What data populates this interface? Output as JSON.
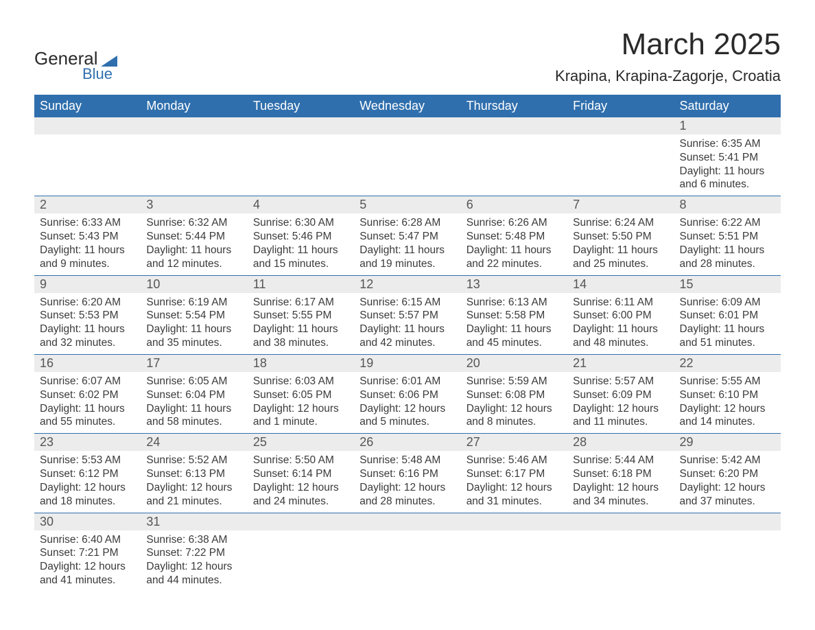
{
  "logo": {
    "word1": "General",
    "word2": "Blue"
  },
  "title": "March 2025",
  "location": "Krapina, Krapina-Zagorje, Croatia",
  "colors": {
    "header_bg": "#2f6fad",
    "header_text": "#ffffff",
    "daynum_bg": "#ececec",
    "row_border": "#2f6fad",
    "text": "#3a3a3a",
    "page_bg": "#ffffff"
  },
  "typography": {
    "title_fontsize": 44,
    "location_fontsize": 22,
    "dayheader_fontsize": 18,
    "body_fontsize": 15.5
  },
  "weekdays": [
    "Sunday",
    "Monday",
    "Tuesday",
    "Wednesday",
    "Thursday",
    "Friday",
    "Saturday"
  ],
  "weeks": [
    [
      null,
      null,
      null,
      null,
      null,
      null,
      {
        "n": "1",
        "sr": "Sunrise: 6:35 AM",
        "ss": "Sunset: 5:41 PM",
        "dl1": "Daylight: 11 hours",
        "dl2": "and 6 minutes."
      }
    ],
    [
      {
        "n": "2",
        "sr": "Sunrise: 6:33 AM",
        "ss": "Sunset: 5:43 PM",
        "dl1": "Daylight: 11 hours",
        "dl2": "and 9 minutes."
      },
      {
        "n": "3",
        "sr": "Sunrise: 6:32 AM",
        "ss": "Sunset: 5:44 PM",
        "dl1": "Daylight: 11 hours",
        "dl2": "and 12 minutes."
      },
      {
        "n": "4",
        "sr": "Sunrise: 6:30 AM",
        "ss": "Sunset: 5:46 PM",
        "dl1": "Daylight: 11 hours",
        "dl2": "and 15 minutes."
      },
      {
        "n": "5",
        "sr": "Sunrise: 6:28 AM",
        "ss": "Sunset: 5:47 PM",
        "dl1": "Daylight: 11 hours",
        "dl2": "and 19 minutes."
      },
      {
        "n": "6",
        "sr": "Sunrise: 6:26 AM",
        "ss": "Sunset: 5:48 PM",
        "dl1": "Daylight: 11 hours",
        "dl2": "and 22 minutes."
      },
      {
        "n": "7",
        "sr": "Sunrise: 6:24 AM",
        "ss": "Sunset: 5:50 PM",
        "dl1": "Daylight: 11 hours",
        "dl2": "and 25 minutes."
      },
      {
        "n": "8",
        "sr": "Sunrise: 6:22 AM",
        "ss": "Sunset: 5:51 PM",
        "dl1": "Daylight: 11 hours",
        "dl2": "and 28 minutes."
      }
    ],
    [
      {
        "n": "9",
        "sr": "Sunrise: 6:20 AM",
        "ss": "Sunset: 5:53 PM",
        "dl1": "Daylight: 11 hours",
        "dl2": "and 32 minutes."
      },
      {
        "n": "10",
        "sr": "Sunrise: 6:19 AM",
        "ss": "Sunset: 5:54 PM",
        "dl1": "Daylight: 11 hours",
        "dl2": "and 35 minutes."
      },
      {
        "n": "11",
        "sr": "Sunrise: 6:17 AM",
        "ss": "Sunset: 5:55 PM",
        "dl1": "Daylight: 11 hours",
        "dl2": "and 38 minutes."
      },
      {
        "n": "12",
        "sr": "Sunrise: 6:15 AM",
        "ss": "Sunset: 5:57 PM",
        "dl1": "Daylight: 11 hours",
        "dl2": "and 42 minutes."
      },
      {
        "n": "13",
        "sr": "Sunrise: 6:13 AM",
        "ss": "Sunset: 5:58 PM",
        "dl1": "Daylight: 11 hours",
        "dl2": "and 45 minutes."
      },
      {
        "n": "14",
        "sr": "Sunrise: 6:11 AM",
        "ss": "Sunset: 6:00 PM",
        "dl1": "Daylight: 11 hours",
        "dl2": "and 48 minutes."
      },
      {
        "n": "15",
        "sr": "Sunrise: 6:09 AM",
        "ss": "Sunset: 6:01 PM",
        "dl1": "Daylight: 11 hours",
        "dl2": "and 51 minutes."
      }
    ],
    [
      {
        "n": "16",
        "sr": "Sunrise: 6:07 AM",
        "ss": "Sunset: 6:02 PM",
        "dl1": "Daylight: 11 hours",
        "dl2": "and 55 minutes."
      },
      {
        "n": "17",
        "sr": "Sunrise: 6:05 AM",
        "ss": "Sunset: 6:04 PM",
        "dl1": "Daylight: 11 hours",
        "dl2": "and 58 minutes."
      },
      {
        "n": "18",
        "sr": "Sunrise: 6:03 AM",
        "ss": "Sunset: 6:05 PM",
        "dl1": "Daylight: 12 hours",
        "dl2": "and 1 minute."
      },
      {
        "n": "19",
        "sr": "Sunrise: 6:01 AM",
        "ss": "Sunset: 6:06 PM",
        "dl1": "Daylight: 12 hours",
        "dl2": "and 5 minutes."
      },
      {
        "n": "20",
        "sr": "Sunrise: 5:59 AM",
        "ss": "Sunset: 6:08 PM",
        "dl1": "Daylight: 12 hours",
        "dl2": "and 8 minutes."
      },
      {
        "n": "21",
        "sr": "Sunrise: 5:57 AM",
        "ss": "Sunset: 6:09 PM",
        "dl1": "Daylight: 12 hours",
        "dl2": "and 11 minutes."
      },
      {
        "n": "22",
        "sr": "Sunrise: 5:55 AM",
        "ss": "Sunset: 6:10 PM",
        "dl1": "Daylight: 12 hours",
        "dl2": "and 14 minutes."
      }
    ],
    [
      {
        "n": "23",
        "sr": "Sunrise: 5:53 AM",
        "ss": "Sunset: 6:12 PM",
        "dl1": "Daylight: 12 hours",
        "dl2": "and 18 minutes."
      },
      {
        "n": "24",
        "sr": "Sunrise: 5:52 AM",
        "ss": "Sunset: 6:13 PM",
        "dl1": "Daylight: 12 hours",
        "dl2": "and 21 minutes."
      },
      {
        "n": "25",
        "sr": "Sunrise: 5:50 AM",
        "ss": "Sunset: 6:14 PM",
        "dl1": "Daylight: 12 hours",
        "dl2": "and 24 minutes."
      },
      {
        "n": "26",
        "sr": "Sunrise: 5:48 AM",
        "ss": "Sunset: 6:16 PM",
        "dl1": "Daylight: 12 hours",
        "dl2": "and 28 minutes."
      },
      {
        "n": "27",
        "sr": "Sunrise: 5:46 AM",
        "ss": "Sunset: 6:17 PM",
        "dl1": "Daylight: 12 hours",
        "dl2": "and 31 minutes."
      },
      {
        "n": "28",
        "sr": "Sunrise: 5:44 AM",
        "ss": "Sunset: 6:18 PM",
        "dl1": "Daylight: 12 hours",
        "dl2": "and 34 minutes."
      },
      {
        "n": "29",
        "sr": "Sunrise: 5:42 AM",
        "ss": "Sunset: 6:20 PM",
        "dl1": "Daylight: 12 hours",
        "dl2": "and 37 minutes."
      }
    ],
    [
      {
        "n": "30",
        "sr": "Sunrise: 6:40 AM",
        "ss": "Sunset: 7:21 PM",
        "dl1": "Daylight: 12 hours",
        "dl2": "and 41 minutes."
      },
      {
        "n": "31",
        "sr": "Sunrise: 6:38 AM",
        "ss": "Sunset: 7:22 PM",
        "dl1": "Daylight: 12 hours",
        "dl2": "and 44 minutes."
      },
      null,
      null,
      null,
      null,
      null
    ]
  ]
}
